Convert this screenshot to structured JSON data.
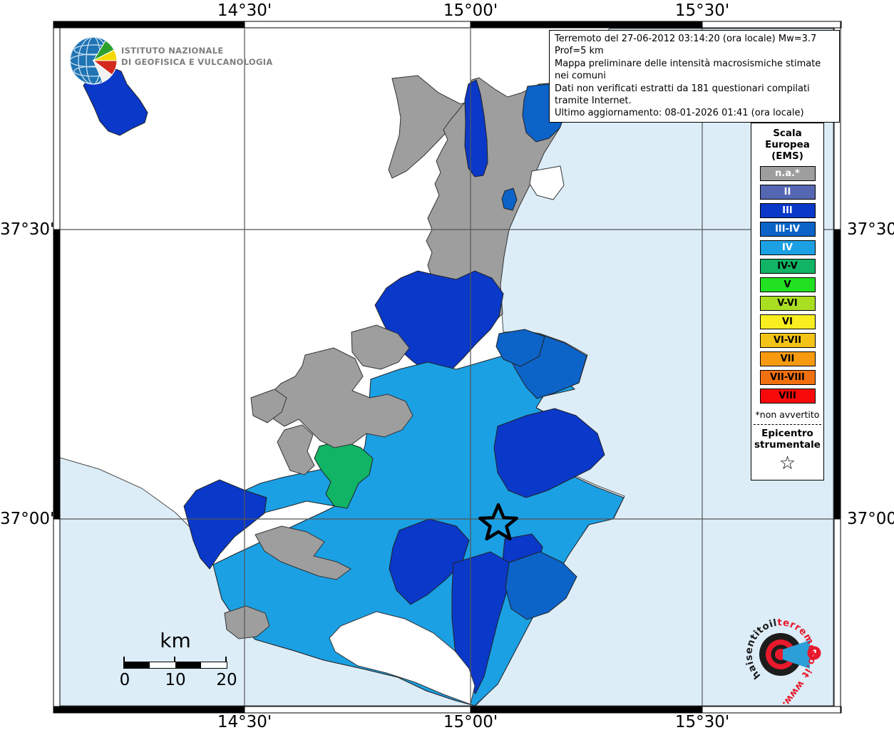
{
  "info": {
    "lines": [
      "Terremoto del 27-06-2012 03:14:20 (ora locale) Mw=3.7 Prof=5 km",
      "Mappa preliminare delle intensità macrosismiche stimate nei comuni",
      "Dati non verificati estratti da 181 questionari compilati tramite Internet.",
      "Ultimo aggiornamento: 08-01-2026 01:41 (ora locale)"
    ]
  },
  "axis": {
    "lon": [
      "14°30'",
      "15°00'",
      "15°30'"
    ],
    "lat": [
      "37°30'",
      "37°00'"
    ]
  },
  "legend": {
    "title_lines": [
      "Scala",
      "Europea",
      "(EMS)"
    ],
    "items": [
      {
        "key": "na",
        "label": "n.a.*",
        "text": "#ffffff"
      },
      {
        "key": "II",
        "label": "II",
        "text": "#ffffff"
      },
      {
        "key": "III",
        "label": "III",
        "text": "#ffffff"
      },
      {
        "key": "III_IV",
        "label": "III-IV",
        "text": "#ffffff"
      },
      {
        "key": "IV",
        "label": "IV",
        "text": "#ffffff"
      },
      {
        "key": "IV_V",
        "label": "IV-V",
        "text": "#000000"
      },
      {
        "key": "V",
        "label": "V",
        "text": "#000000"
      },
      {
        "key": "V_VI",
        "label": "V-VI",
        "text": "#000000"
      },
      {
        "key": "VI",
        "label": "VI",
        "text": "#000000"
      },
      {
        "key": "VI_VII",
        "label": "VI-VII",
        "text": "#000000"
      },
      {
        "key": "VII",
        "label": "VII",
        "text": "#000000"
      },
      {
        "key": "VII_VIII",
        "label": "VII-VIII",
        "text": "#000000"
      },
      {
        "key": "VIII",
        "label": "VIII",
        "text": "#000000"
      }
    ],
    "footnote": "*non avvertito",
    "epicenter_lines": [
      "Epicentro",
      "strumentale"
    ],
    "star": "☆"
  },
  "scalebar": {
    "unit": "km",
    "labels": [
      "0",
      "10",
      "20"
    ]
  },
  "logo": {
    "line1": "ISTITUTO NAZIONALE",
    "line2": "DI GEOFISICA E VULCANOLOGIA"
  },
  "watermark": {
    "prefix_red": "www.",
    "middle_black_1": "haisentito",
    "middle_black_2": "il",
    "suffix_red": "terremoto.it",
    "question": "?"
  },
  "map": {
    "palette": {
      "sea": "#dcedf8",
      "land": "#ffffff",
      "na": "#9e9e9e",
      "II": "#5566b2",
      "III": "#0a38c8",
      "III_IV": "#0c63c8",
      "IV": "#1ba0e4",
      "IV_V": "#10b464",
      "V": "#22e022",
      "V_VI": "#aade22",
      "VI": "#f8ee20",
      "VI_VII": "#f4c318",
      "VII": "#f79a10",
      "VII_VIII": "#f07010",
      "VIII": "#f80a0a",
      "wm_red": "#e8192c",
      "wm_black": "#1c1c1c",
      "wm_blue": "#2b9fd8",
      "globe_blue": "#1f74b4"
    }
  }
}
